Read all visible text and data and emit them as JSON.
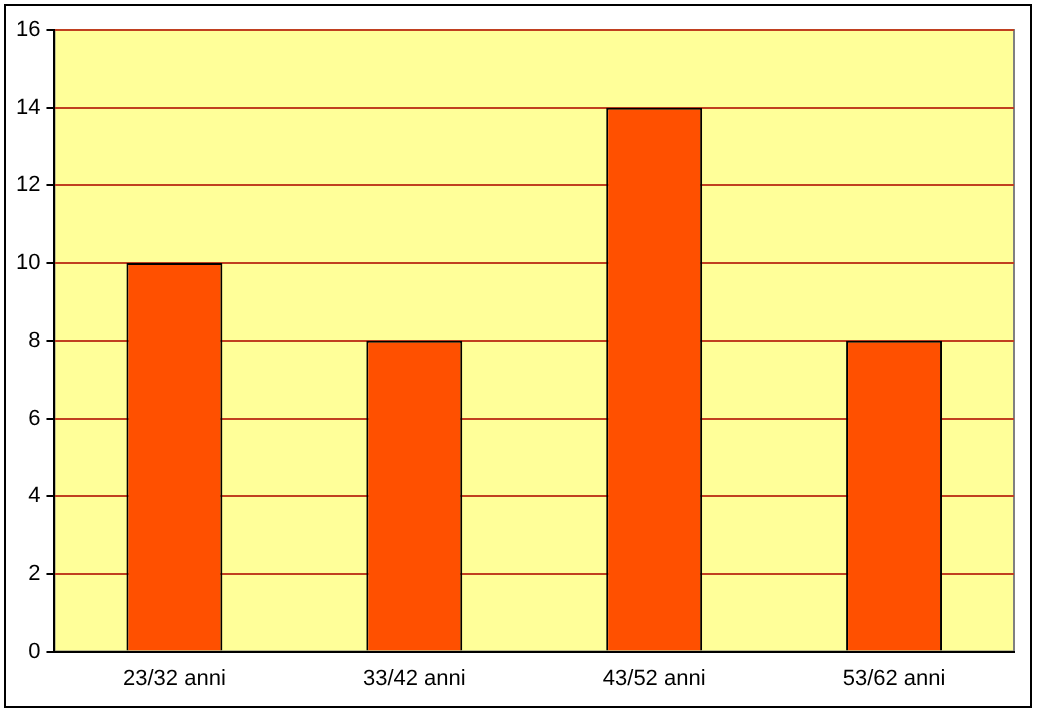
{
  "chart_data": {
    "type": "bar",
    "categories": [
      "23/32 anni",
      "33/42 anni",
      "43/52 anni",
      "53/62 anni"
    ],
    "values": [
      10,
      8,
      14,
      8
    ],
    "color": "#ff5000",
    "ylim": [
      0,
      16
    ],
    "yticks": [
      0,
      2,
      4,
      6,
      8,
      10,
      12,
      14,
      16
    ],
    "grid": "y",
    "legend": false
  }
}
